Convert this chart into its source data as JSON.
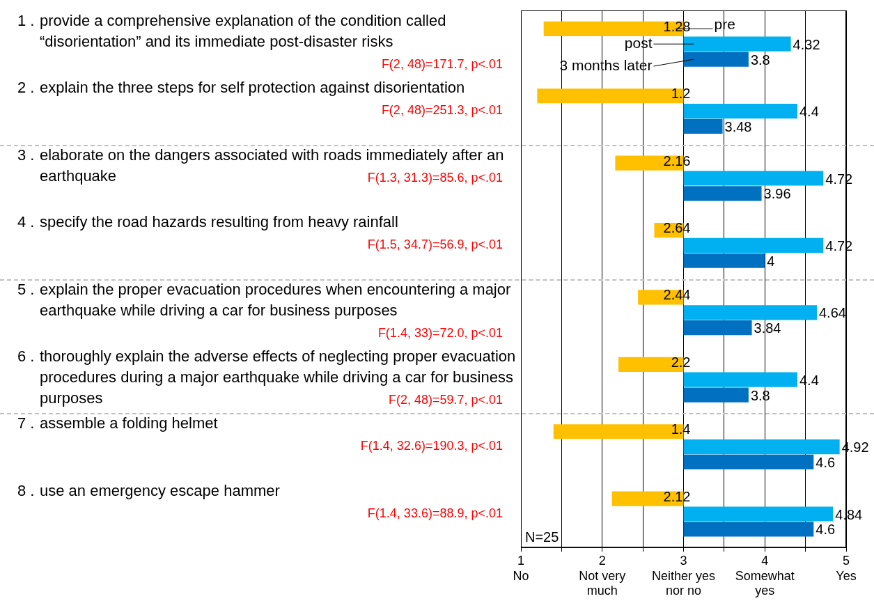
{
  "chart_data": {
    "type": "bar",
    "orientation": "horizontal",
    "categories": [
      "1 . provide a comprehensive explanation of the condition called “disorientation” and its immediate post-disaster risks",
      "2 . explain the three steps for self protection against disorientation",
      "3 . elaborate on the dangers associated with roads immediately after an earthquake",
      "4 . specify the road hazards resulting from heavy rainfall",
      "5 . explain the proper evacuation procedures when encountering a major earthquake while driving a car for business purposes",
      "6 . thoroughly explain the adverse effects of neglecting proper evacuation procedures during a major earthquake while driving a car for business purposes",
      "7 . assemble a folding helmet",
      "8 . use an emergency escape hammer"
    ],
    "series": [
      {
        "name": "pre",
        "color": "#ffc000",
        "base": [
          3,
          3,
          3,
          3,
          3,
          3,
          3,
          3
        ],
        "values": [
          -1.72,
          -1.8,
          -0.84,
          -0.36,
          -0.56,
          -0.8,
          -1.6,
          -0.88
        ],
        "value_labels": [
          "1.28",
          "1.2",
          "2.16",
          "2.64",
          "2.44",
          "2.2",
          "1.4",
          "2.12"
        ]
      },
      {
        "name": "post",
        "color": "#00b0f0",
        "base": [
          3,
          3,
          3,
          3,
          3,
          3,
          3,
          3
        ],
        "values": [
          1.32,
          1.4,
          1.72,
          1.72,
          1.64,
          1.4,
          1.92,
          1.84
        ],
        "value_labels": [
          "4.32",
          "4.4",
          "4.72",
          "4.72",
          "4.64",
          "4.4",
          "4.92",
          "4.84"
        ]
      },
      {
        "name": "3 months later",
        "color": "#0070c0",
        "base": [
          3,
          3,
          3,
          3,
          3,
          3,
          3,
          3
        ],
        "values": [
          0.8,
          0.48,
          0.96,
          1,
          0.84,
          0.8,
          1.6,
          1.6
        ],
        "value_labels": [
          "3.8",
          "3.48",
          "3.96",
          "4",
          "3.84",
          "3.8",
          "4.6",
          "4.6"
        ]
      }
    ],
    "xlim": [
      1,
      5
    ],
    "xticks": [
      {
        "value": 1,
        "label": "1\nNo"
      },
      {
        "value": 1.5,
        "label": null
      },
      {
        "value": 2,
        "label": "2\nNot very\nmuch"
      },
      {
        "value": 2.5,
        "label": null
      },
      {
        "value": 3,
        "label": "3\nNeither yes\nnor no"
      },
      {
        "value": 3.5,
        "label": null
      },
      {
        "value": 4,
        "label": "4\nSomewhat\nyes"
      },
      {
        "value": 4.5,
        "label": null
      },
      {
        "value": 5,
        "label": "5\nYes"
      }
    ],
    "grid": "x",
    "annotations": [
      "F(2, 48)=171.7, p<.01",
      "F(2, 48)=251.3, p<.01",
      "F(1.3, 31.3)=85.6, p<.01",
      "F(1.5, 34.7)=56.9, p<.01",
      "F(1.4, 33)=72.0, p<.01",
      "F(2, 48)=59.7, p<.01",
      "F(1.4, 32.6)=190.3, p<.01",
      "F(1.4, 33.6)=88.9, p<.01",
      "N=25"
    ]
  }
}
